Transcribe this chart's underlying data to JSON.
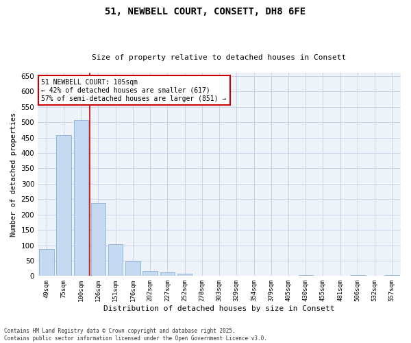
{
  "title": "51, NEWBELL COURT, CONSETT, DH8 6FE",
  "subtitle": "Size of property relative to detached houses in Consett",
  "xlabel": "Distribution of detached houses by size in Consett",
  "ylabel": "Number of detached properties",
  "categories": [
    "49sqm",
    "75sqm",
    "100sqm",
    "126sqm",
    "151sqm",
    "176sqm",
    "202sqm",
    "227sqm",
    "252sqm",
    "278sqm",
    "303sqm",
    "329sqm",
    "354sqm",
    "379sqm",
    "405sqm",
    "430sqm",
    "455sqm",
    "481sqm",
    "506sqm",
    "532sqm",
    "557sqm"
  ],
  "values": [
    88,
    457,
    507,
    238,
    104,
    47,
    16,
    12,
    8,
    1,
    0,
    0,
    0,
    0,
    0,
    4,
    0,
    0,
    4,
    0,
    4
  ],
  "bar_color": "#c5d9f0",
  "bar_edge_color": "#7aa6d4",
  "red_line_x": 2.5,
  "annotation_text": "51 NEWBELL COURT: 105sqm\n← 42% of detached houses are smaller (617)\n57% of semi-detached houses are larger (851) →",
  "annotation_box_color": "#ffffff",
  "annotation_box_edge": "#cc0000",
  "annotation_text_color": "#000000",
  "red_line_color": "#cc0000",
  "ylim": [
    0,
    660
  ],
  "yticks": [
    0,
    50,
    100,
    150,
    200,
    250,
    300,
    350,
    400,
    450,
    500,
    550,
    600,
    650
  ],
  "grid_color": "#c8d4e8",
  "background_color": "#eef2f9",
  "footer": "Contains HM Land Registry data © Crown copyright and database right 2025.\nContains public sector information licensed under the Open Government Licence v3.0.",
  "title_fontsize": 10,
  "subtitle_fontsize": 8,
  "xlabel_fontsize": 8,
  "ylabel_fontsize": 7.5
}
